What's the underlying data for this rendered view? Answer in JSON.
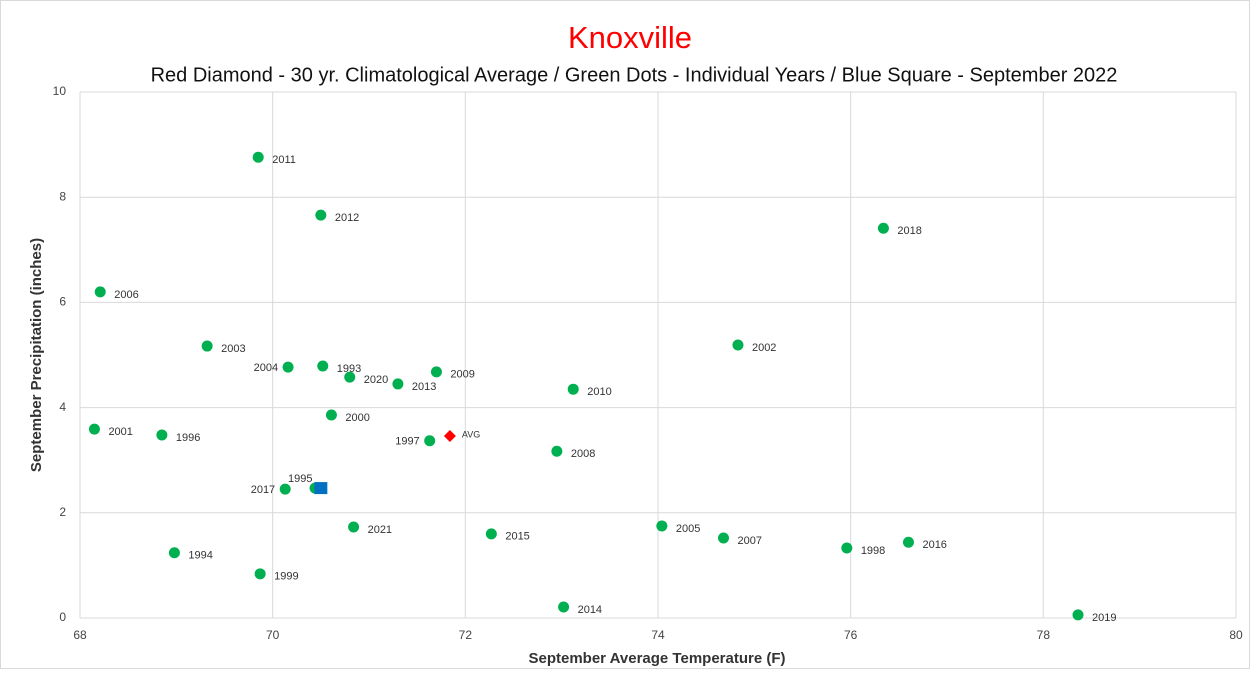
{
  "chart_data": {
    "type": "scatter",
    "title": "Knoxville",
    "subtitle": "Red Diamond - 30 yr. Climatological Average / Green Dots - Individual Years / Blue Square - September 2022",
    "xlabel": "September Average Temperature (F)",
    "ylabel": "September Precipitation (inches)",
    "xlim": [
      68,
      80
    ],
    "ylim": [
      0,
      10
    ],
    "xticks": [
      68,
      70,
      72,
      74,
      76,
      78,
      80
    ],
    "yticks": [
      0,
      2,
      4,
      6,
      8,
      10
    ],
    "grid": true,
    "series": [
      {
        "color": "#00b050",
        "marker": "circle",
        "labels": [
          "2011",
          "2012",
          "2018",
          "2006",
          "2003",
          "2002",
          "2004",
          "1993",
          "2020",
          "2009",
          "2013",
          "2010",
          "2000",
          "2001",
          "1996",
          "1997",
          "2008",
          "1995",
          "2017",
          "2021",
          "2005",
          "2015",
          "2007",
          "2016",
          "1998",
          "1994",
          "1999",
          "2014",
          "2019"
        ],
        "x": [
          69.85,
          70.5,
          76.34,
          68.21,
          69.32,
          74.83,
          70.16,
          70.52,
          70.8,
          71.7,
          71.3,
          73.12,
          70.61,
          68.15,
          68.85,
          71.63,
          72.95,
          70.44,
          70.13,
          70.84,
          74.04,
          72.27,
          74.68,
          76.6,
          75.96,
          68.98,
          69.87,
          73.02,
          78.36
        ],
        "values": [
          8.76,
          7.66,
          7.41,
          6.2,
          5.17,
          5.19,
          4.77,
          4.79,
          4.58,
          4.68,
          4.45,
          4.35,
          3.86,
          3.59,
          3.48,
          3.37,
          3.17,
          2.47,
          2.45,
          1.73,
          1.75,
          1.6,
          1.52,
          1.44,
          1.33,
          1.24,
          0.84,
          0.21,
          0.06
        ]
      },
      {
        "color": "#ff0000",
        "marker": "diamond",
        "labels": [
          "AVG"
        ],
        "x": [
          71.84
        ],
        "values": [
          3.46
        ]
      },
      {
        "color": "#0070c0",
        "marker": "square",
        "x": [
          70.5
        ],
        "values": [
          2.47
        ]
      }
    ]
  }
}
